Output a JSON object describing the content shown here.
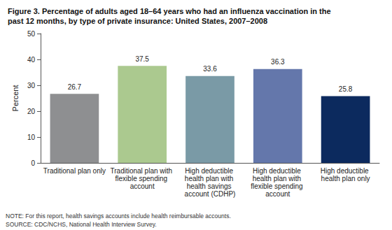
{
  "chart_data": {
    "type": "bar",
    "title": "Figure 3. Percentage of adults aged 18–64 years who had an influenza vaccination in the past 12 months, by type of private insurance: United States, 2007–2008",
    "y_label": "Percent",
    "categories": [
      "Traditional plan only",
      "Traditional plan with flexible spending account",
      "High deductible health plan with health savings account (CDHP)",
      "High deductible health plan with flexible spending account",
      "High deductible health plan only"
    ],
    "values": [
      26.7,
      37.5,
      33.6,
      36.3,
      25.8
    ],
    "colors": [
      "#8e8f91",
      "#abc98f",
      "#7a9aa6",
      "#6477ab",
      "#0c2a5e"
    ],
    "ylim": [
      0,
      50
    ],
    "yticks": [
      0,
      10,
      20,
      30,
      40,
      50
    ],
    "grid": false,
    "data_labels": true,
    "annotations": [
      "NOTE: For this report, health savings accounts include health reimbursable accounts.",
      "SOURCE: CDC/NCHS, National Health Interview Survey."
    ]
  }
}
